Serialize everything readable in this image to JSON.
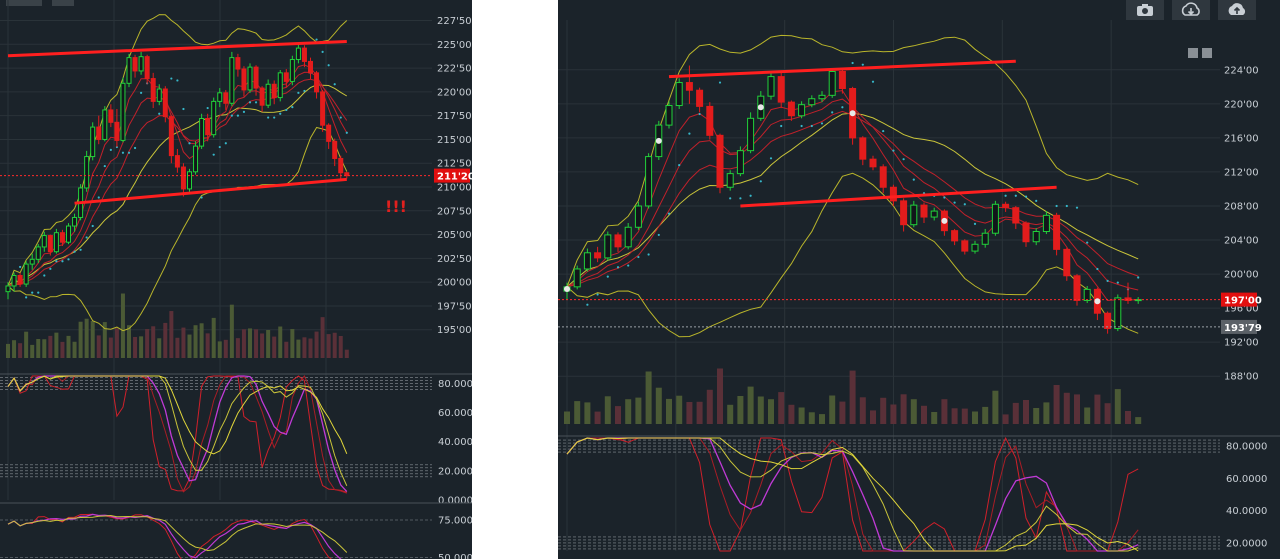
{
  "left": {
    "toolbar_icons": [
      "window-icon",
      "save-icon"
    ],
    "price_axis": [
      "227'50",
      "225'00",
      "222'50",
      "220'00",
      "217'50",
      "215'00",
      "212'50",
      "210'00",
      "207'50",
      "205'00",
      "202'50",
      "200'00",
      "197'50",
      "195'00"
    ],
    "last_price": "211'20",
    "warning_text": "!!!",
    "osc1_axis": [
      "80.0000",
      "60.0000",
      "40.0000",
      "20.0000",
      "0.0000"
    ],
    "osc2_axis": [
      "75.0000",
      "50.0000"
    ]
  },
  "right": {
    "toolbar_icons": [
      "camera-icon",
      "cloud-download-icon",
      "cloud-upload-icon"
    ],
    "corner_icons": [
      "down-arrow-icon",
      "scale-icon"
    ],
    "price_axis": [
      "224'00",
      "220'00",
      "216'00",
      "212'00",
      "208'00",
      "204'00",
      "200'00",
      "196'00",
      "192'00",
      "188'00"
    ],
    "last_price": "197'00",
    "marker_price": "193'79",
    "osc_axis": [
      "80.0000",
      "60.0000",
      "40.0000",
      "20.0000"
    ]
  },
  "chart_data": [
    {
      "type": "candlestick",
      "title": "",
      "ylim": [
        193.5,
        228.5
      ],
      "candles": [
        [
          199.0,
          200.0,
          198.2,
          199.6
        ],
        [
          199.6,
          201.0,
          199.0,
          200.7
        ],
        [
          200.7,
          201.0,
          199.5,
          199.8
        ],
        [
          199.8,
          202.2,
          199.5,
          201.9
        ],
        [
          201.9,
          203.0,
          201.3,
          202.4
        ],
        [
          202.4,
          204.0,
          202.0,
          203.7
        ],
        [
          203.7,
          205.3,
          203.2,
          204.9
        ],
        [
          204.9,
          205.0,
          202.8,
          203.2
        ],
        [
          203.2,
          205.6,
          203.0,
          205.2
        ],
        [
          205.2,
          205.5,
          203.8,
          204.2
        ],
        [
          204.2,
          206.2,
          204.0,
          205.9
        ],
        [
          205.9,
          207.2,
          205.3,
          206.8
        ],
        [
          206.8,
          210.3,
          206.5,
          209.9
        ],
        [
          209.9,
          213.8,
          209.5,
          213.2
        ],
        [
          213.2,
          216.8,
          212.8,
          216.3
        ],
        [
          216.3,
          217.5,
          214.5,
          215.0
        ],
        [
          215.0,
          218.5,
          214.8,
          218.1
        ],
        [
          218.1,
          218.7,
          216.3,
          216.8
        ],
        [
          216.8,
          218.2,
          214.2,
          214.9
        ],
        [
          214.9,
          221.5,
          214.7,
          220.9
        ],
        [
          220.9,
          224.0,
          220.5,
          223.6
        ],
        [
          223.6,
          223.9,
          221.5,
          222.2
        ],
        [
          222.2,
          224.2,
          221.8,
          223.7
        ],
        [
          223.7,
          223.9,
          220.8,
          221.4
        ],
        [
          221.4,
          222.0,
          218.3,
          219.0
        ],
        [
          219.0,
          220.8,
          218.6,
          220.3
        ],
        [
          220.3,
          220.6,
          216.8,
          217.4
        ],
        [
          217.4,
          217.6,
          212.5,
          213.3
        ],
        [
          213.3,
          214.0,
          211.5,
          212.1
        ],
        [
          212.1,
          212.5,
          209.0,
          209.8
        ],
        [
          209.8,
          211.9,
          209.5,
          211.6
        ],
        [
          211.6,
          214.8,
          211.3,
          214.3
        ],
        [
          214.3,
          217.7,
          214.0,
          217.2
        ],
        [
          217.2,
          217.7,
          214.8,
          215.5
        ],
        [
          215.5,
          219.4,
          215.2,
          219.0
        ],
        [
          219.0,
          220.4,
          218.4,
          219.9
        ],
        [
          219.9,
          220.2,
          218.1,
          218.8
        ],
        [
          218.8,
          224.2,
          218.5,
          223.6
        ],
        [
          223.6,
          224.0,
          221.6,
          222.4
        ],
        [
          222.4,
          222.7,
          219.5,
          220.2
        ],
        [
          220.2,
          223.0,
          219.9,
          222.6
        ],
        [
          222.6,
          222.8,
          219.6,
          220.4
        ],
        [
          220.4,
          220.6,
          217.9,
          218.6
        ],
        [
          218.6,
          221.3,
          218.3,
          220.8
        ],
        [
          220.8,
          221.2,
          218.7,
          219.4
        ],
        [
          219.4,
          222.3,
          219.0,
          222.0
        ],
        [
          222.0,
          222.4,
          220.5,
          221.1
        ],
        [
          221.1,
          223.8,
          220.7,
          223.4
        ],
        [
          223.4,
          225.0,
          223.0,
          224.6
        ],
        [
          224.6,
          224.9,
          222.6,
          223.2
        ],
        [
          223.2,
          223.6,
          221.3,
          222.0
        ],
        [
          222.0,
          222.2,
          219.3,
          220.0
        ],
        [
          220.0,
          220.2,
          215.8,
          216.5
        ],
        [
          216.5,
          216.7,
          214.0,
          214.8
        ],
        [
          214.8,
          215.1,
          212.2,
          213.0
        ],
        [
          213.0,
          213.3,
          210.8,
          211.5
        ],
        [
          211.5,
          211.6,
          210.9,
          211.2
        ]
      ],
      "last_price": 211.2,
      "channel_lines": [
        [
          [
            0,
            223.8
          ],
          [
            56,
            225.3
          ]
        ],
        [
          [
            11,
            208.3
          ],
          [
            56,
            210.8
          ]
        ]
      ],
      "oscillator": {
        "ylim": [
          0,
          85
        ],
        "reference_levels": [
          80,
          20
        ]
      },
      "oscillator_2": {
        "ylim": [
          45,
          85
        ],
        "reference_levels": [
          75,
          50
        ]
      }
    },
    {
      "type": "candlestick",
      "title": "",
      "ylim": [
        184.5,
        227.5
      ],
      "candles": [
        [
          198.0,
          199.0,
          197.0,
          198.5
        ],
        [
          198.5,
          201.0,
          198.2,
          200.6
        ],
        [
          200.6,
          203.0,
          200.3,
          202.5
        ],
        [
          202.5,
          203.2,
          201.4,
          201.9
        ],
        [
          201.9,
          205.0,
          201.6,
          204.6
        ],
        [
          204.6,
          204.9,
          202.6,
          203.2
        ],
        [
          203.2,
          206.0,
          202.9,
          205.5
        ],
        [
          205.5,
          208.5,
          205.2,
          208.0
        ],
        [
          208.0,
          214.2,
          207.7,
          213.8
        ],
        [
          213.8,
          218.0,
          213.4,
          217.5
        ],
        [
          217.5,
          220.3,
          217.1,
          219.8
        ],
        [
          219.8,
          223.0,
          219.4,
          222.5
        ],
        [
          222.5,
          224.5,
          220.0,
          221.6
        ],
        [
          221.6,
          221.9,
          219.0,
          219.7
        ],
        [
          219.7,
          220.2,
          215.8,
          216.3
        ],
        [
          216.3,
          216.5,
          209.5,
          210.2
        ],
        [
          210.2,
          212.2,
          209.8,
          211.8
        ],
        [
          211.8,
          215.0,
          211.5,
          214.5
        ],
        [
          214.5,
          219.0,
          214.2,
          218.3
        ],
        [
          218.3,
          221.5,
          218.0,
          220.9
        ],
        [
          220.9,
          223.6,
          220.5,
          223.2
        ],
        [
          223.2,
          223.8,
          219.5,
          220.2
        ],
        [
          220.2,
          220.4,
          218.0,
          218.6
        ],
        [
          218.6,
          220.3,
          218.3,
          219.9
        ],
        [
          219.9,
          221.0,
          219.6,
          220.6
        ],
        [
          220.6,
          221.5,
          220.2,
          221.0
        ],
        [
          221.0,
          224.2,
          220.7,
          223.8
        ],
        [
          223.8,
          224.0,
          221.2,
          221.8
        ],
        [
          221.8,
          222.0,
          215.2,
          216.0
        ],
        [
          216.0,
          216.2,
          212.8,
          213.5
        ],
        [
          213.5,
          213.9,
          212.2,
          212.6
        ],
        [
          212.6,
          212.9,
          209.5,
          210.2
        ],
        [
          210.2,
          210.5,
          208.0,
          208.6
        ],
        [
          208.6,
          208.9,
          205.0,
          205.8
        ],
        [
          205.8,
          208.6,
          205.5,
          208.1
        ],
        [
          208.1,
          208.4,
          206.0,
          206.7
        ],
        [
          206.7,
          207.8,
          206.3,
          207.4
        ],
        [
          207.4,
          207.6,
          204.5,
          205.1
        ],
        [
          205.1,
          205.3,
          203.4,
          203.9
        ],
        [
          203.9,
          204.1,
          202.3,
          202.7
        ],
        [
          202.7,
          203.9,
          202.4,
          203.5
        ],
        [
          203.5,
          205.3,
          203.1,
          204.8
        ],
        [
          204.8,
          208.6,
          204.5,
          208.2
        ],
        [
          208.2,
          208.5,
          207.3,
          207.8
        ],
        [
          207.8,
          208.0,
          205.3,
          206.0
        ],
        [
          206.0,
          206.2,
          203.2,
          203.8
        ],
        [
          203.8,
          205.4,
          203.4,
          205.0
        ],
        [
          205.0,
          207.4,
          204.7,
          206.9
        ],
        [
          206.9,
          207.2,
          202.2,
          202.9
        ],
        [
          202.9,
          203.1,
          199.2,
          199.8
        ],
        [
          199.8,
          200.0,
          196.3,
          196.9
        ],
        [
          196.9,
          198.6,
          196.6,
          198.2
        ],
        [
          198.2,
          198.4,
          194.6,
          195.4
        ],
        [
          195.4,
          195.6,
          193.0,
          193.6
        ],
        [
          193.6,
          197.6,
          193.3,
          197.2
        ],
        [
          197.2,
          199.0,
          196.5,
          196.9
        ],
        [
          196.9,
          197.3,
          196.5,
          197.0
        ]
      ],
      "last_price": 197.0,
      "marker_price": 193.79,
      "channel_lines": [
        [
          [
            10,
            223.2
          ],
          [
            44,
            225.0
          ]
        ],
        [
          [
            17,
            208.0
          ],
          [
            48,
            210.2
          ]
        ]
      ],
      "oscillator": {
        "ylim": [
          15,
          85
        ],
        "reference_levels": [
          80,
          20
        ]
      }
    }
  ]
}
